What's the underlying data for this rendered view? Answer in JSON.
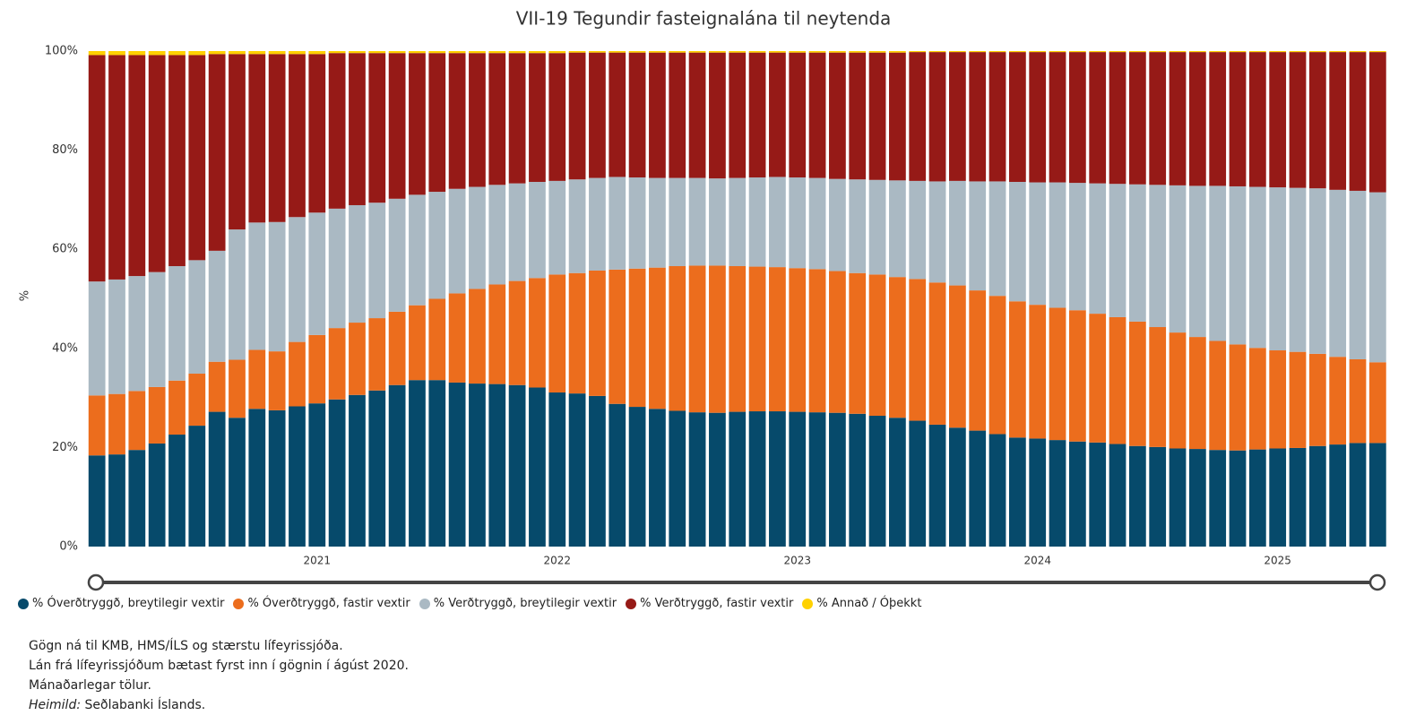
{
  "chart_data": {
    "type": "stacked_bar",
    "title": "VII-19 Tegundir fasteignalána til neytenda",
    "y_label": "%",
    "categories": [
      null,
      null,
      null,
      null,
      null,
      null,
      null,
      null,
      null,
      null,
      null,
      "2021",
      null,
      null,
      null,
      null,
      null,
      null,
      null,
      null,
      null,
      null,
      null,
      "2022",
      null,
      null,
      null,
      null,
      null,
      null,
      null,
      null,
      null,
      null,
      null,
      "2023",
      null,
      null,
      null,
      null,
      null,
      null,
      null,
      null,
      null,
      null,
      null,
      "2024",
      null,
      null,
      null,
      null,
      null,
      null,
      null,
      null,
      null,
      null,
      null,
      "2025",
      null,
      null,
      null,
      null,
      null
    ],
    "ylim": [
      0,
      100
    ],
    "yticks": [
      {
        "value": 0,
        "label": "0%"
      },
      {
        "value": 20,
        "label": "20%"
      },
      {
        "value": 40,
        "label": "40%"
      },
      {
        "value": 60,
        "label": "60%"
      },
      {
        "value": 80,
        "label": "80%"
      },
      {
        "value": 100,
        "label": "100%"
      }
    ],
    "grid": false,
    "legend": "bottom-left",
    "series": [
      {
        "name": "% Óverðtryggð, breytilegir vextir",
        "color": "#064a6b",
        "values": [
          18.4,
          18.6,
          19.5,
          20.8,
          22.6,
          24.4,
          27.2,
          26,
          27.8,
          27.5,
          28.3,
          28.9,
          29.7,
          30.6,
          31.5,
          32.6,
          33.6,
          33.6,
          33.1,
          32.9,
          32.8,
          32.6,
          32.1,
          31.1,
          30.9,
          30.4,
          28.8,
          28.2,
          27.8,
          27.4,
          27.1,
          27.0,
          27.2,
          27.3,
          27.3,
          27.2,
          27.1,
          27.0,
          26.8,
          26.4,
          26.0,
          25.4,
          24.6,
          24.0,
          23.4,
          22.7,
          22.0,
          21.8,
          21.5,
          21.2,
          21.0,
          20.7,
          20.3,
          20.1,
          19.8,
          19.7,
          19.5,
          19.4,
          19.6,
          19.8,
          19.9,
          20.3,
          20.6,
          20.9,
          20.9
        ]
      },
      {
        "name": "% Óverðtryggð, fastir vextir",
        "color": "#ec6d1d",
        "values": [
          12.1,
          12.2,
          11.9,
          11.4,
          10.9,
          10.5,
          10.1,
          11.7,
          11.9,
          11.9,
          13.0,
          13.8,
          14.4,
          14.6,
          14.6,
          14.8,
          15.1,
          16.4,
          18.0,
          19.1,
          20.1,
          21.0,
          22.1,
          23.8,
          24.3,
          25.3,
          27.1,
          27.9,
          28.5,
          29.2,
          29.6,
          29.7,
          29.4,
          29.2,
          29.1,
          29.0,
          28.9,
          28.6,
          28.4,
          28.5,
          28.4,
          28.6,
          28.7,
          28.7,
          28.3,
          27.9,
          27.5,
          27.0,
          26.7,
          26.5,
          26.0,
          25.6,
          25.1,
          24.2,
          23.4,
          22.6,
          22.0,
          21.4,
          20.5,
          19.8,
          19.4,
          18.6,
          17.7,
          16.9,
          16.3
        ]
      },
      {
        "name": "% Verðtryggð, breytilegir vextir",
        "color": "#aab9c3",
        "values": [
          23.0,
          23.1,
          23.2,
          23.2,
          23.1,
          22.9,
          22.4,
          26.3,
          25.7,
          26.1,
          25.2,
          24.7,
          24.1,
          23.7,
          23.3,
          22.8,
          22.3,
          21.6,
          21.1,
          20.6,
          20.1,
          19.7,
          19.4,
          18.9,
          18.9,
          18.7,
          18.7,
          18.4,
          18.1,
          17.8,
          17.7,
          17.6,
          17.8,
          18.0,
          18.2,
          18.3,
          18.4,
          18.6,
          18.9,
          19.1,
          19.5,
          19.8,
          20.4,
          21.1,
          22.0,
          23.1,
          24.1,
          24.7,
          25.3,
          25.7,
          26.3,
          26.9,
          27.7,
          28.7,
          29.7,
          30.5,
          31.3,
          31.9,
          32.5,
          32.9,
          33.1,
          33.4,
          33.7,
          34.0,
          34.3
        ]
      },
      {
        "name": "% Verðtryggð, fastir vextir",
        "color": "#961a17",
        "values": [
          45.7,
          45.3,
          44.6,
          43.8,
          42.6,
          41.4,
          39.7,
          35.4,
          34.0,
          33.9,
          32.9,
          32.0,
          31.4,
          30.7,
          30.2,
          29.4,
          28.6,
          28.0,
          27.4,
          27.0,
          26.6,
          26.3,
          26.0,
          25.8,
          25.6,
          25.3,
          25.1,
          25.2,
          25.3,
          25.3,
          25.3,
          25.4,
          25.3,
          25.2,
          25.1,
          25.2,
          25.3,
          25.5,
          25.6,
          25.7,
          25.8,
          26.0,
          26.1,
          26.0,
          26.1,
          26.1,
          26.2,
          26.3,
          26.3,
          26.4,
          26.5,
          26.6,
          26.7,
          26.8,
          26.9,
          27.0,
          27.0,
          27.1,
          27.2,
          27.3,
          27.4,
          27.5,
          27.8,
          28.0,
          28.3
        ]
      },
      {
        "name": "% Annað / Óþekkt",
        "color": "#ffd100",
        "values": [
          0.8,
          0.8,
          0.8,
          0.8,
          0.8,
          0.8,
          0.6,
          0.6,
          0.6,
          0.6,
          0.6,
          0.6,
          0.4,
          0.4,
          0.4,
          0.4,
          0.4,
          0.4,
          0.4,
          0.4,
          0.4,
          0.4,
          0.4,
          0.4,
          0.3,
          0.3,
          0.3,
          0.3,
          0.3,
          0.3,
          0.3,
          0.3,
          0.3,
          0.3,
          0.3,
          0.3,
          0.3,
          0.3,
          0.3,
          0.3,
          0.3,
          0.2,
          0.2,
          0.2,
          0.2,
          0.2,
          0.2,
          0.2,
          0.2,
          0.2,
          0.2,
          0.2,
          0.2,
          0.2,
          0.2,
          0.2,
          0.2,
          0.2,
          0.2,
          0.2,
          0.2,
          0.2,
          0.2,
          0.2,
          0.2
        ]
      }
    ]
  },
  "notes": [
    "Gögn ná til KMB, HMS/ÍLS og stærstu lífeyrissjóða.",
    "Lán frá lífeyrissjóðum bætast fyrst inn í gögnin í ágúst 2020.",
    "Mánaðarlegar tölur."
  ],
  "source_label": "Heimild:",
  "source": "Seðlabanki Íslands."
}
